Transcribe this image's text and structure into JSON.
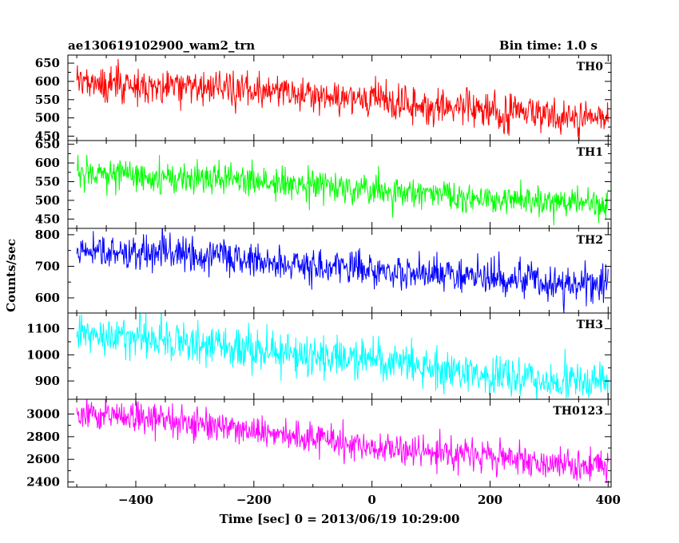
{
  "header": {
    "left_title": "ae130619102900_wam2_trn",
    "right_title": "Bin time: 1.0 s"
  },
  "chart_data": {
    "type": "line",
    "xlabel": "Time [sec] 0 = 2013/06/19 10:29:00",
    "ylabel": "Counts/sec",
    "xlim": [
      -515,
      405
    ],
    "x_ticks": [
      -400,
      -200,
      0,
      200,
      400
    ],
    "x_tick_labels": [
      "−400",
      "−200",
      "0",
      "200",
      "400"
    ],
    "x_range": [
      -500,
      400
    ],
    "bin_time_s": 1.0,
    "panels": [
      {
        "label": "TH0",
        "color": "#ff0000",
        "ylim": [
          438,
          672
        ],
        "y_ticks": [
          450,
          500,
          550,
          600,
          650
        ],
        "y_tick_labels": [
          "450",
          "500",
          "550",
          "600",
          "650"
        ],
        "trend_points": [
          [
            -500,
            600
          ],
          [
            -300,
            585
          ],
          [
            -100,
            562
          ],
          [
            0,
            548
          ],
          [
            100,
            535
          ],
          [
            200,
            520
          ],
          [
            300,
            508
          ],
          [
            400,
            500
          ]
        ],
        "noise_sigma": 24
      },
      {
        "label": "TH1",
        "color": "#00ff00",
        "ylim": [
          425,
          660
        ],
        "y_ticks": [
          450,
          500,
          550,
          600,
          650
        ],
        "y_tick_labels": [
          "450",
          "500",
          "550",
          "600",
          "650"
        ],
        "trend_points": [
          [
            -500,
            575
          ],
          [
            -300,
            560
          ],
          [
            -100,
            540
          ],
          [
            0,
            527
          ],
          [
            100,
            515
          ],
          [
            200,
            505
          ],
          [
            300,
            495
          ],
          [
            400,
            490
          ]
        ],
        "noise_sigma": 22
      },
      {
        "label": "TH2",
        "color": "#0000ff",
        "ylim": [
          552,
          820
        ],
        "y_ticks": [
          600,
          700,
          800
        ],
        "y_tick_labels": [
          "600",
          "700",
          "800"
        ],
        "trend_points": [
          [
            -500,
            750
          ],
          [
            -300,
            735
          ],
          [
            -100,
            705
          ],
          [
            0,
            688
          ],
          [
            100,
            675
          ],
          [
            200,
            662
          ],
          [
            300,
            650
          ],
          [
            400,
            645
          ]
        ],
        "noise_sigma": 28
      },
      {
        "label": "TH3",
        "color": "#00ffff",
        "ylim": [
          830,
          1160
        ],
        "y_ticks": [
          900,
          1000,
          1100
        ],
        "y_tick_labels": [
          "900",
          "1000",
          "1100"
        ],
        "trend_points": [
          [
            -500,
            1085
          ],
          [
            -300,
            1040
          ],
          [
            -100,
            1000
          ],
          [
            0,
            975
          ],
          [
            100,
            955
          ],
          [
            200,
            925
          ],
          [
            300,
            905
          ],
          [
            400,
            895
          ]
        ],
        "noise_sigma": 38
      },
      {
        "label": "TH0123",
        "color": "#ff00ff",
        "ylim": [
          2355,
          3130
        ],
        "y_ticks": [
          2400,
          2600,
          2800,
          3000
        ],
        "y_tick_labels": [
          "2400",
          "2600",
          "2800",
          "3000"
        ],
        "trend_points": [
          [
            -500,
            3010
          ],
          [
            -300,
            2930
          ],
          [
            -100,
            2790
          ],
          [
            0,
            2720
          ],
          [
            100,
            2660
          ],
          [
            200,
            2610
          ],
          [
            300,
            2570
          ],
          [
            400,
            2550
          ]
        ],
        "noise_sigma": 70
      }
    ]
  }
}
